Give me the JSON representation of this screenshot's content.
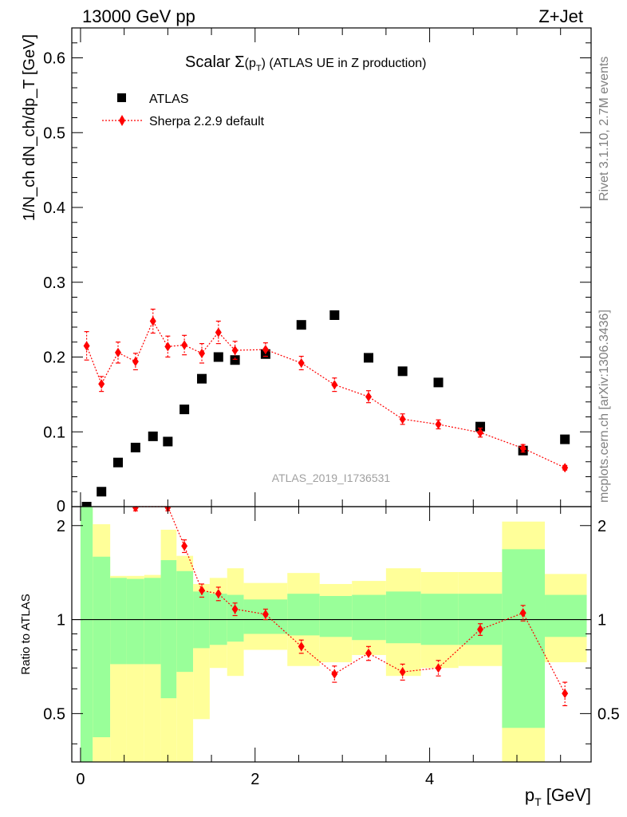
{
  "header": {
    "left": "13000 GeV pp",
    "right": "Z+Jet"
  },
  "side_labels": {
    "rivet": "Rivet 3.1.10,  2.7M events",
    "mcplots": "mcplots.cern.ch [arXiv:1306.3436]"
  },
  "colors": {
    "atlas": "#000000",
    "sherpa": "#ff0000",
    "band_inner": "#99ff99",
    "band_outer": "#ffff99"
  },
  "chart_data": [
    {
      "type": "scatter",
      "title_prefix": "Scalar ",
      "title_symbol": "Σ",
      "title_paren_open": "(p",
      "title_sub": "T",
      "title_paren_close": ")",
      "title_suffix": " (ATLAS UE in Z production)",
      "ylabel": "1/N_ch dN_ch/dp_T [GeV]",
      "xlim": [
        -0.1,
        5.85
      ],
      "ylim": [
        0,
        0.64
      ],
      "yticks": [
        0.1,
        0.2,
        0.3,
        0.4,
        0.5,
        0.6
      ],
      "ytick_labels": [
        "0.1",
        "0.2",
        "0.3",
        "0.4",
        "0.5",
        "0.6"
      ],
      "bottom_label": "0",
      "watermark": "ATLAS_2019_I1736531",
      "legend": {
        "placement": "top-left",
        "entries": [
          "ATLAS",
          "Sherpa 2.2.9 default"
        ]
      },
      "series": [
        {
          "name": "ATLAS",
          "x": [
            0.07,
            0.24,
            0.43,
            0.63,
            0.83,
            1.0,
            1.19,
            1.39,
            1.58,
            1.77,
            2.12,
            2.53,
            2.91,
            3.3,
            3.69,
            4.1,
            4.58,
            5.07,
            5.55
          ],
          "y": [
            0.0,
            0.02,
            0.059,
            0.079,
            0.094,
            0.087,
            0.13,
            0.171,
            0.2,
            0.196,
            0.204,
            0.243,
            0.256,
            0.199,
            0.181,
            0.166,
            0.107,
            0.075,
            0.09
          ]
        },
        {
          "name": "Sherpa 2.2.9 default",
          "x": [
            0.07,
            0.24,
            0.43,
            0.63,
            0.83,
            1.0,
            1.19,
            1.39,
            1.58,
            1.77,
            2.12,
            2.53,
            2.91,
            3.3,
            3.69,
            4.1,
            4.58,
            5.07,
            5.55
          ],
          "y": [
            0.215,
            0.164,
            0.206,
            0.194,
            0.248,
            0.214,
            0.216,
            0.205,
            0.233,
            0.209,
            0.21,
            0.192,
            0.163,
            0.147,
            0.117,
            0.11,
            0.099,
            0.078,
            0.052
          ],
          "err": [
            0.019,
            0.01,
            0.014,
            0.011,
            0.016,
            0.014,
            0.013,
            0.013,
            0.015,
            0.012,
            0.009,
            0.009,
            0.009,
            0.008,
            0.007,
            0.006,
            0.006,
            0.005,
            0.003
          ]
        }
      ]
    },
    {
      "type": "scatter",
      "ylabel": "Ratio to ATLAS",
      "xlabel_main": "p",
      "xlabel_sub": "T",
      "xlabel_unit": " [GeV]",
      "xlim": [
        -0.1,
        5.85
      ],
      "ylim": [
        0.35,
        2.3
      ],
      "xticks": [
        0,
        2,
        4
      ],
      "xtick_labels": [
        "0",
        "2",
        "4"
      ],
      "yticks": [
        0.5,
        1,
        2
      ],
      "ytick_labels": [
        "0.5",
        "1",
        "2"
      ],
      "reference_line": 1,
      "bands": {
        "edges": [
          0.0,
          0.14,
          0.34,
          0.53,
          0.73,
          0.92,
          1.1,
          1.29,
          1.48,
          1.68,
          1.87,
          2.37,
          2.74,
          3.11,
          3.5,
          3.9,
          4.33,
          4.83,
          5.32,
          5.8
        ],
        "inner_low": [
          0.35,
          0.42,
          0.72,
          0.72,
          0.72,
          0.56,
          0.68,
          0.81,
          0.83,
          0.85,
          0.9,
          0.89,
          0.88,
          0.86,
          0.84,
          0.83,
          0.83,
          0.45,
          0.88
        ],
        "inner_high": [
          2.3,
          1.59,
          1.36,
          1.35,
          1.36,
          1.55,
          1.43,
          1.23,
          1.21,
          1.2,
          1.16,
          1.21,
          1.19,
          1.2,
          1.23,
          1.21,
          1.21,
          1.68,
          1.2
        ],
        "outer_low": [
          0.35,
          0.35,
          0.35,
          0.35,
          0.35,
          0.35,
          0.35,
          0.48,
          0.7,
          0.66,
          0.8,
          0.71,
          0.73,
          0.77,
          0.66,
          0.7,
          0.71,
          0.35,
          0.73
        ],
        "outer_high": [
          2.3,
          2.02,
          1.38,
          1.38,
          1.39,
          1.94,
          1.6,
          1.3,
          1.36,
          1.46,
          1.31,
          1.41,
          1.3,
          1.33,
          1.46,
          1.42,
          1.42,
          2.06,
          1.4
        ]
      },
      "series": [
        {
          "name": "Sherpa 2.2.9 default",
          "x": [
            0.07,
            0.24,
            0.43,
            0.63,
            0.83,
            1.0,
            1.19,
            1.39,
            1.58,
            1.77,
            2.12,
            2.53,
            2.91,
            3.3,
            3.69,
            4.1,
            4.58,
            5.07,
            5.55
          ],
          "y": [
            null,
            null,
            null,
            2.33,
            null,
            2.33,
            1.72,
            1.24,
            1.21,
            1.08,
            1.04,
            0.82,
            0.67,
            0.78,
            0.68,
            0.7,
            0.93,
            1.05,
            0.58
          ],
          "err": [
            0,
            0,
            0,
            0.1,
            0,
            0.1,
            0.08,
            0.06,
            0.06,
            0.05,
            0.04,
            0.04,
            0.04,
            0.04,
            0.04,
            0.04,
            0.04,
            0.06,
            0.05
          ]
        }
      ]
    }
  ]
}
